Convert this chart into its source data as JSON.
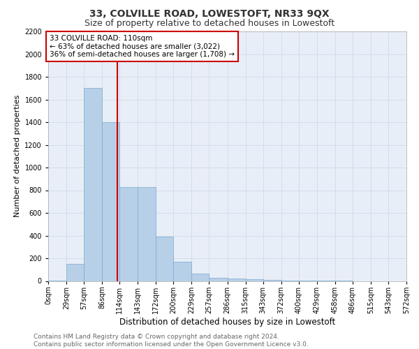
{
  "title1": "33, COLVILLE ROAD, LOWESTOFT, NR33 9QX",
  "title2": "Size of property relative to detached houses in Lowestoft",
  "xlabel": "Distribution of detached houses by size in Lowestoft",
  "ylabel": "Number of detached properties",
  "bin_labels": [
    "0sqm",
    "29sqm",
    "57sqm",
    "86sqm",
    "114sqm",
    "143sqm",
    "172sqm",
    "200sqm",
    "229sqm",
    "257sqm",
    "286sqm",
    "315sqm",
    "343sqm",
    "372sqm",
    "400sqm",
    "429sqm",
    "458sqm",
    "486sqm",
    "515sqm",
    "543sqm",
    "572sqm"
  ],
  "bin_edges": [
    0,
    29,
    57,
    86,
    114,
    143,
    172,
    200,
    229,
    257,
    286,
    315,
    343,
    372,
    400,
    429,
    458,
    486,
    515,
    543,
    572
  ],
  "bar_heights": [
    5,
    150,
    1700,
    1400,
    830,
    830,
    390,
    170,
    65,
    30,
    20,
    15,
    10,
    5,
    2,
    1,
    1,
    0,
    0,
    0
  ],
  "bar_color": "#b8cfe8",
  "bar_edgecolor": "#7aaad0",
  "property_line_x": 110,
  "annotation_text": "33 COLVILLE ROAD: 110sqm\n← 63% of detached houses are smaller (3,022)\n36% of semi-detached houses are larger (1,708) →",
  "annotation_box_color": "#ffffff",
  "annotation_box_edgecolor": "#cc0000",
  "vline_color": "#cc0000",
  "ylim": [
    0,
    2200
  ],
  "yticks": [
    0,
    200,
    400,
    600,
    800,
    1000,
    1200,
    1400,
    1600,
    1800,
    2000,
    2200
  ],
  "grid_color": "#ccd6e8",
  "background_color": "#e8eef7",
  "footer_text": "Contains HM Land Registry data © Crown copyright and database right 2024.\nContains public sector information licensed under the Open Government Licence v3.0.",
  "title1_fontsize": 10,
  "title2_fontsize": 9,
  "xlabel_fontsize": 8.5,
  "ylabel_fontsize": 8,
  "tick_fontsize": 7,
  "annotation_fontsize": 7.5,
  "footer_fontsize": 6.5
}
